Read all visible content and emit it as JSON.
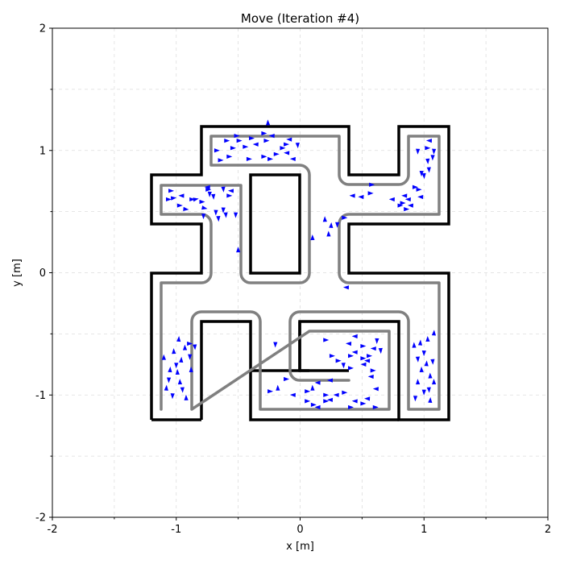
{
  "chart_data": {
    "type": "scatter",
    "title": "Move (Iteration #4)",
    "xlabel": "x [m]",
    "ylabel": "y [m]",
    "xlim": [
      -2,
      2
    ],
    "ylim": [
      -2,
      2
    ],
    "xticks": [
      "-2",
      "-1",
      "0",
      "1",
      "2"
    ],
    "yticks": [
      "-2",
      "-1",
      "0",
      "1",
      "2"
    ],
    "grid": true,
    "colors": {
      "particles": "#0000ff",
      "walls": "#000000",
      "path": "#808080"
    },
    "particles": [
      {
        "x": -1.07,
        "y": 0.6,
        "h": 0
      },
      {
        "x": -1.03,
        "y": 0.61,
        "h": 0.1
      },
      {
        "x": -0.98,
        "y": 0.55,
        "h": 0
      },
      {
        "x": -0.93,
        "y": 0.52,
        "h": -0.1
      },
      {
        "x": -0.88,
        "y": 0.6,
        "h": 0
      },
      {
        "x": -0.85,
        "y": 0.6,
        "h": 0.2
      },
      {
        "x": -0.8,
        "y": 0.58,
        "h": 0
      },
      {
        "x": -0.78,
        "y": 0.53,
        "h": -0.2
      },
      {
        "x": -0.75,
        "y": 0.68,
        "h": 0
      },
      {
        "x": -0.73,
        "y": 0.65,
        "h": -1.6
      },
      {
        "x": -0.7,
        "y": 0.63,
        "h": -1.5
      },
      {
        "x": -0.68,
        "y": 0.5,
        "h": -1.6
      },
      {
        "x": -0.66,
        "y": 0.45,
        "h": -1.5
      },
      {
        "x": -0.62,
        "y": 0.52,
        "h": -1.6
      },
      {
        "x": -0.6,
        "y": 0.48,
        "h": -1.5
      },
      {
        "x": -0.58,
        "y": 0.63,
        "h": 0
      },
      {
        "x": -0.55,
        "y": 0.67,
        "h": 3.1
      },
      {
        "x": -0.52,
        "y": 0.48,
        "h": -1.6
      },
      {
        "x": -0.5,
        "y": 0.18,
        "h": 1.6
      },
      {
        "x": -0.74,
        "y": 0.7,
        "h": 3.1
      },
      {
        "x": -1.05,
        "y": 0.67,
        "h": 0
      },
      {
        "x": -0.95,
        "y": 0.63,
        "h": 3.1
      },
      {
        "x": -0.62,
        "y": 0.69,
        "h": -1.5
      },
      {
        "x": -0.78,
        "y": 0.47,
        "h": -1.6
      },
      {
        "x": -0.6,
        "y": 1.08,
        "h": 0
      },
      {
        "x": -0.55,
        "y": 1.02,
        "h": 0
      },
      {
        "x": -0.5,
        "y": 1.08,
        "h": 0
      },
      {
        "x": -0.45,
        "y": 1.03,
        "h": 0
      },
      {
        "x": -0.4,
        "y": 1.1,
        "h": 0
      },
      {
        "x": -0.35,
        "y": 1.05,
        "h": 3.1
      },
      {
        "x": -0.3,
        "y": 0.95,
        "h": 0
      },
      {
        "x": -0.25,
        "y": 0.93,
        "h": 0
      },
      {
        "x": -0.2,
        "y": 0.97,
        "h": 0
      },
      {
        "x": -0.15,
        "y": 1.02,
        "h": 0
      },
      {
        "x": -0.1,
        "y": 0.98,
        "h": 3.1
      },
      {
        "x": -0.05,
        "y": 0.93,
        "h": 3.1
      },
      {
        "x": -0.65,
        "y": 0.92,
        "h": 0
      },
      {
        "x": -0.58,
        "y": 0.95,
        "h": 0
      },
      {
        "x": -0.52,
        "y": 1.12,
        "h": 0
      },
      {
        "x": -0.3,
        "y": 1.14,
        "h": 0
      },
      {
        "x": -0.28,
        "y": 1.08,
        "h": 0
      },
      {
        "x": -0.26,
        "y": 1.22,
        "h": 1.6
      },
      {
        "x": -0.12,
        "y": 1.05,
        "h": 0
      },
      {
        "x": -0.08,
        "y": 1.09,
        "h": 3.1
      },
      {
        "x": -0.02,
        "y": 1.05,
        "h": -1.5
      },
      {
        "x": -0.68,
        "y": 1.0,
        "h": 0
      },
      {
        "x": -0.42,
        "y": 0.93,
        "h": 0
      },
      {
        "x": -0.22,
        "y": 1.12,
        "h": 3.1
      },
      {
        "x": 0.2,
        "y": 0.43,
        "h": 1.6
      },
      {
        "x": 0.25,
        "y": 0.38,
        "h": 1.5
      },
      {
        "x": 0.3,
        "y": 0.4,
        "h": -1.6
      },
      {
        "x": 0.23,
        "y": 0.31,
        "h": 1.6
      },
      {
        "x": 0.35,
        "y": 0.45,
        "h": 0
      },
      {
        "x": 0.1,
        "y": 0.28,
        "h": 1.6
      },
      {
        "x": 0.38,
        "y": -0.12,
        "h": 3.1
      },
      {
        "x": 0.43,
        "y": 0.63,
        "h": 3.1
      },
      {
        "x": 0.5,
        "y": 0.62,
        "h": 3.1
      },
      {
        "x": 0.56,
        "y": 0.65,
        "h": 0
      },
      {
        "x": 0.57,
        "y": 0.72,
        "h": 0
      },
      {
        "x": 0.75,
        "y": 0.6,
        "h": 3.1
      },
      {
        "x": 0.82,
        "y": 0.57,
        "h": 0
      },
      {
        "x": 0.85,
        "y": 0.52,
        "h": 0
      },
      {
        "x": 0.88,
        "y": 0.6,
        "h": 3.1
      },
      {
        "x": 0.92,
        "y": 0.7,
        "h": 0
      },
      {
        "x": 0.95,
        "y": 0.68,
        "h": 0
      },
      {
        "x": 0.98,
        "y": 0.82,
        "h": -1.6
      },
      {
        "x": 1.0,
        "y": 0.8,
        "h": -1.5
      },
      {
        "x": 1.02,
        "y": 1.02,
        "h": 0
      },
      {
        "x": 1.05,
        "y": 1.08,
        "h": 3.1
      },
      {
        "x": 1.08,
        "y": 1.0,
        "h": -1.6
      },
      {
        "x": 1.03,
        "y": 0.92,
        "h": -1.5
      },
      {
        "x": 0.98,
        "y": 0.62,
        "h": 3.1
      },
      {
        "x": 1.07,
        "y": 0.95,
        "h": -1.6
      },
      {
        "x": 0.95,
        "y": 1.0,
        "h": -1.6
      },
      {
        "x": 0.85,
        "y": 0.63,
        "h": 3.1
      },
      {
        "x": 0.8,
        "y": 0.55,
        "h": 0
      },
      {
        "x": 1.04,
        "y": 0.85,
        "h": -1.5
      },
      {
        "x": 0.9,
        "y": 0.55,
        "h": 3.1
      },
      {
        "x": -1.1,
        "y": -0.7,
        "h": 1.6
      },
      {
        "x": -1.05,
        "y": -0.8,
        "h": 1.5
      },
      {
        "x": -1.0,
        "y": -0.75,
        "h": -1.6
      },
      {
        "x": -0.97,
        "y": -0.9,
        "h": 1.6
      },
      {
        "x": -0.95,
        "y": -0.95,
        "h": -1.5
      },
      {
        "x": -1.08,
        "y": -0.95,
        "h": 1.5
      },
      {
        "x": -1.03,
        "y": -1.0,
        "h": -1.6
      },
      {
        "x": -0.93,
        "y": -0.62,
        "h": 1.6
      },
      {
        "x": -0.9,
        "y": -0.58,
        "h": 0
      },
      {
        "x": -0.88,
        "y": -0.8,
        "h": 1.6
      },
      {
        "x": -0.85,
        "y": -0.6,
        "h": -1.5
      },
      {
        "x": -1.02,
        "y": -0.65,
        "h": 1.6
      },
      {
        "x": -0.98,
        "y": -0.55,
        "h": 1.5
      },
      {
        "x": -0.92,
        "y": -1.03,
        "h": 1.6
      },
      {
        "x": -1.06,
        "y": -0.87,
        "h": -1.6
      },
      {
        "x": -0.96,
        "y": -0.72,
        "h": 1.5
      },
      {
        "x": -0.99,
        "y": -0.82,
        "h": 1.6
      },
      {
        "x": -0.89,
        "y": -0.68,
        "h": -1.6
      },
      {
        "x": 0.2,
        "y": -0.55,
        "h": 0
      },
      {
        "x": 0.25,
        "y": -0.68,
        "h": 0
      },
      {
        "x": 0.3,
        "y": -0.72,
        "h": 0
      },
      {
        "x": 0.35,
        "y": -0.75,
        "h": -1.5
      },
      {
        "x": 0.4,
        "y": -0.68,
        "h": 0
      },
      {
        "x": 0.45,
        "y": -0.65,
        "h": 3.1
      },
      {
        "x": 0.5,
        "y": -0.7,
        "h": 0
      },
      {
        "x": 0.55,
        "y": -0.72,
        "h": 3.1
      },
      {
        "x": 0.6,
        "y": -0.62,
        "h": 3.1
      },
      {
        "x": 0.62,
        "y": -0.55,
        "h": -1.6
      },
      {
        "x": 0.58,
        "y": -0.8,
        "h": 0
      },
      {
        "x": 0.45,
        "y": -0.52,
        "h": 3.1
      },
      {
        "x": 0.5,
        "y": -0.6,
        "h": 0
      },
      {
        "x": 0.52,
        "y": -0.75,
        "h": 3.1
      },
      {
        "x": 0.58,
        "y": -0.85,
        "h": 3.1
      },
      {
        "x": 0.65,
        "y": -0.63,
        "h": -1.5
      },
      {
        "x": 0.4,
        "y": -0.78,
        "h": 0
      },
      {
        "x": 0.55,
        "y": -0.68,
        "h": 0
      },
      {
        "x": 0.62,
        "y": -0.95,
        "h": 3.1
      },
      {
        "x": 0.4,
        "y": -0.58,
        "h": 3.1
      },
      {
        "x": -0.2,
        "y": -0.58,
        "h": -1.6
      },
      {
        "x": -0.12,
        "y": -0.87,
        "h": 0
      },
      {
        "x": -0.18,
        "y": -0.95,
        "h": 1.6
      },
      {
        "x": -0.25,
        "y": -0.97,
        "h": 0
      },
      {
        "x": 0.1,
        "y": -0.95,
        "h": 1.6
      },
      {
        "x": 0.05,
        "y": -0.97,
        "h": 0
      },
      {
        "x": 0.15,
        "y": -0.9,
        "h": 3.1
      },
      {
        "x": 0.25,
        "y": -0.88,
        "h": 3.1
      },
      {
        "x": 0.2,
        "y": -1.0,
        "h": 0
      },
      {
        "x": 0.3,
        "y": -1.0,
        "h": 3.1
      },
      {
        "x": 0.35,
        "y": -0.98,
        "h": 0
      },
      {
        "x": 0.45,
        "y": -1.05,
        "h": 3.1
      },
      {
        "x": 0.5,
        "y": -1.07,
        "h": 0
      },
      {
        "x": 0.55,
        "y": -1.03,
        "h": 3.1
      },
      {
        "x": 0.6,
        "y": -1.1,
        "h": 0
      },
      {
        "x": 0.1,
        "y": -1.08,
        "h": 0
      },
      {
        "x": 0.15,
        "y": -1.1,
        "h": 3.1
      },
      {
        "x": 0.05,
        "y": -1.05,
        "h": 0
      },
      {
        "x": 0.25,
        "y": -1.04,
        "h": 3.1
      },
      {
        "x": -0.05,
        "y": -1.0,
        "h": 3.1
      },
      {
        "x": 0.2,
        "y": -1.05,
        "h": 0
      },
      {
        "x": 0.4,
        "y": -1.1,
        "h": 0
      },
      {
        "x": 0.92,
        "y": -0.6,
        "h": 1.6
      },
      {
        "x": 0.95,
        "y": -0.7,
        "h": -1.5
      },
      {
        "x": 0.98,
        "y": -0.8,
        "h": 1.6
      },
      {
        "x": 1.0,
        "y": -0.65,
        "h": -1.6
      },
      {
        "x": 1.02,
        "y": -0.75,
        "h": 1.5
      },
      {
        "x": 1.05,
        "y": -0.85,
        "h": 1.6
      },
      {
        "x": 1.07,
        "y": -0.72,
        "h": -1.5
      },
      {
        "x": 1.03,
        "y": -0.55,
        "h": 1.6
      },
      {
        "x": 1.08,
        "y": -0.5,
        "h": 1.5
      },
      {
        "x": 0.95,
        "y": -0.9,
        "h": 1.6
      },
      {
        "x": 1.0,
        "y": -0.97,
        "h": -1.6
      },
      {
        "x": 1.05,
        "y": -1.05,
        "h": 1.5
      },
      {
        "x": 0.93,
        "y": -1.02,
        "h": -1.6
      },
      {
        "x": 1.08,
        "y": -0.9,
        "h": 1.6
      },
      {
        "x": 0.97,
        "y": -0.58,
        "h": 1.5
      },
      {
        "x": 1.04,
        "y": -0.95,
        "h": -1.5
      }
    ]
  }
}
